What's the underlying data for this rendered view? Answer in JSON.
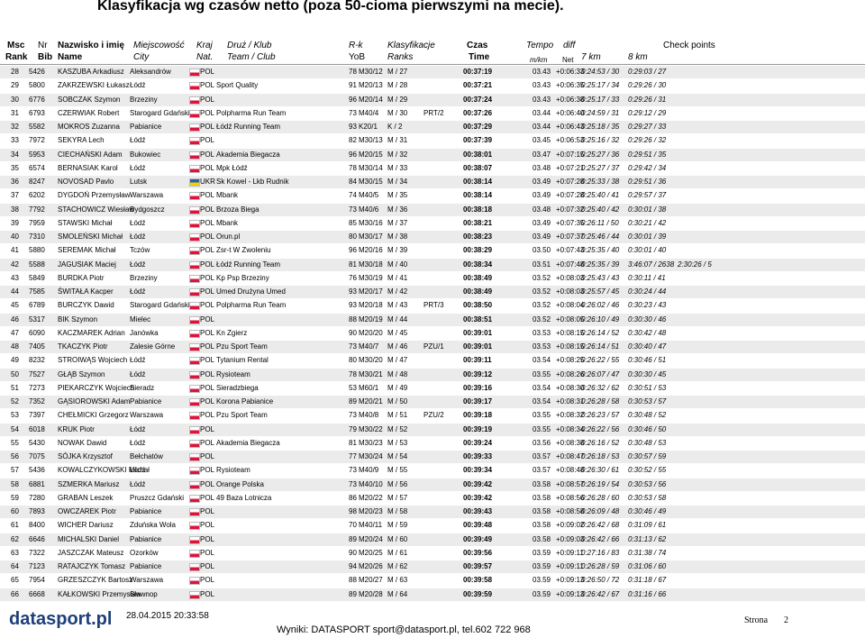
{
  "title": "Klasyfikacja wg czasów netto (poza 50-cioma pierwszymi na mecie).",
  "header": {
    "top": {
      "rank": "Msc",
      "bib": "Nr",
      "name": "Nazwisko i imię",
      "city": "Miejscowość",
      "nat": "Kraj",
      "club": "Druż / Klub",
      "cat": "R-k",
      "cls": "Klasyfikacje",
      "time": "Czas",
      "tempo": "Tempo",
      "diff": "diff",
      "check": "Check points"
    },
    "bottom": {
      "rank": "Rank",
      "bib": "Bib",
      "name": "Name",
      "city": "City",
      "nat": "Nat.",
      "club": "Team / Club",
      "yob": "YoB",
      "cls": "Ranks",
      "time": "Time",
      "tempo": "m/km",
      "net": "Net",
      "k7": "7 km",
      "k8": "8 km"
    }
  },
  "table": {
    "rows": [
      {
        "rank": "28",
        "bib": "5426",
        "name": "KASZUBA Arkadiusz",
        "city": "Aleksandrów",
        "nat": "POL",
        "yob": "78",
        "cat": "M30/12",
        "cls": "M / 27",
        "time": "00:37:19",
        "tempo": "03.43",
        "diff": "+0:06:33",
        "k7": "0:24:53 / 30",
        "k8": "0:29:03 / 27"
      },
      {
        "rank": "29",
        "bib": "5800",
        "name": "ZAKRZEWSKI Łukasz",
        "city": "Łódź",
        "nat": "POL",
        "club": "Sport Quality",
        "yob": "91",
        "cat": "M20/13",
        "cls": "M / 28",
        "time": "00:37:21",
        "tempo": "03.43",
        "diff": "+0:06:35",
        "k7": "0:25:17 / 34",
        "k8": "0:29:26 / 30"
      },
      {
        "rank": "30",
        "bib": "6776",
        "name": "SOBCZAK Szymon",
        "city": "Brzeziny",
        "nat": "POL",
        "yob": "96",
        "cat": "M20/14",
        "cls": "M / 29",
        "time": "00:37:24",
        "tempo": "03.43",
        "diff": "+0:06:38",
        "k7": "0:25:17 / 33",
        "k8": "0:29:26 / 31"
      },
      {
        "rank": "31",
        "bib": "6793",
        "name": "CZERWIAK Robert",
        "city": "Starogard Gdański",
        "nat": "POL",
        "club": "Polpharma Run Team",
        "yob": "73",
        "cat": "M40/4",
        "cls": "M / 30",
        "team": "PRT/2",
        "time": "00:37:26",
        "tempo": "03.44",
        "diff": "+0:06:40",
        "k7": "0:24:59 / 31",
        "k8": "0:29:12 / 29"
      },
      {
        "rank": "32",
        "bib": "5582",
        "name": "MOKROS Zuzanna",
        "city": "Pabianice",
        "nat": "POL",
        "club": "Łódź Running Team",
        "yob": "93",
        "cat": "K20/1",
        "cls": "K / 2",
        "time": "00:37:29",
        "tempo": "03.44",
        "diff": "+0:06:43",
        "k7": "0:25:18 / 35",
        "k8": "0:29:27 / 33"
      },
      {
        "rank": "33",
        "bib": "7972",
        "name": "SEKYRA Lech",
        "city": "Łódź",
        "nat": "POL",
        "yob": "82",
        "cat": "M30/13",
        "cls": "M / 31",
        "time": "00:37:39",
        "tempo": "03.45",
        "diff": "+0:06:53",
        "k7": "0:25:16 / 32",
        "k8": "0:29:26 / 32"
      },
      {
        "rank": "34",
        "bib": "5953",
        "name": "CIECHAŃSKI Adam",
        "city": "Bukowiec",
        "nat": "POL",
        "club": "Akademia Biegacza",
        "yob": "96",
        "cat": "M20/15",
        "cls": "M / 32",
        "time": "00:38:01",
        "tempo": "03.47",
        "diff": "+0:07:15",
        "k7": "0:25:27 / 36",
        "k8": "0:29:51 / 35"
      },
      {
        "rank": "35",
        "bib": "6574",
        "name": "BERNASIAK Karol",
        "city": "Łódź",
        "nat": "POL",
        "club": "Mpk Łódź",
        "yob": "78",
        "cat": "M30/14",
        "cls": "M / 33",
        "time": "00:38:07",
        "tempo": "03.48",
        "diff": "+0:07:21",
        "k7": "0:25:27 / 37",
        "k8": "0:29:42 / 34"
      },
      {
        "rank": "36",
        "bib": "8247",
        "name": "NOVOSAD Pavlo",
        "city": "Lutsk",
        "nat": "UKR",
        "club": "Sk Kowel - Lkb Rudnik",
        "yob": "84",
        "cat": "M30/15",
        "cls": "M / 34",
        "time": "00:38:14",
        "tempo": "03.49",
        "diff": "+0:07:28",
        "k7": "0:25:33 / 38",
        "k8": "0:29:51 / 36"
      },
      {
        "rank": "37",
        "bib": "6202",
        "name": "DYGDOŃ Przemysław",
        "city": "Warszawa",
        "nat": "POL",
        "club": "Mbank",
        "yob": "74",
        "cat": "M40/5",
        "cls": "M / 35",
        "time": "00:38:14",
        "tempo": "03.49",
        "diff": "+0:07:28",
        "k7": "0:25:40 / 41",
        "k8": "0:29:57 / 37"
      },
      {
        "rank": "38",
        "bib": "7792",
        "name": "STACHOWICZ Wiesław",
        "city": "Bydgoszcz",
        "nat": "POL",
        "club": "Brzoza Biega",
        "yob": "73",
        "cat": "M40/6",
        "cls": "M / 36",
        "time": "00:38:18",
        "tempo": "03.48",
        "diff": "+0:07:32",
        "k7": "0:25:40 / 42",
        "k8": "0:30:01 / 38"
      },
      {
        "rank": "39",
        "bib": "7959",
        "name": "STAWSKI Michał",
        "city": "Łódź",
        "nat": "POL",
        "club": "Mbank",
        "yob": "85",
        "cat": "M30/16",
        "cls": "M / 37",
        "time": "00:38:21",
        "tempo": "03.49",
        "diff": "+0:07:35",
        "k7": "0:26:11 / 50",
        "k8": "0:30:21 / 42"
      },
      {
        "rank": "40",
        "bib": "7310",
        "name": "SMOLEŃSKI Michał",
        "city": "Łódź",
        "nat": "POL",
        "club": "Orun.pl",
        "yob": "80",
        "cat": "M30/17",
        "cls": "M / 38",
        "time": "00:38:23",
        "tempo": "03.49",
        "diff": "+0:07:37",
        "k7": "0:25:46 / 44",
        "k8": "0:30:01 / 39"
      },
      {
        "rank": "41",
        "bib": "5880",
        "name": "SEREMAK Michał",
        "city": "Tczów",
        "nat": "POL",
        "club": "Zsr-t W Zwoleniu",
        "yob": "96",
        "cat": "M20/16",
        "cls": "M / 39",
        "time": "00:38:29",
        "tempo": "03.50",
        "diff": "+0:07:43",
        "k7": "0:25:35 / 40",
        "k8": "0:30:01 / 40"
      },
      {
        "rank": "42",
        "bib": "5588",
        "name": "JAGUSIAK Maciej",
        "city": "Łódź",
        "nat": "POL",
        "club": "Łódź Running Team",
        "yob": "81",
        "cat": "M30/18",
        "cls": "M / 40",
        "time": "00:38:34",
        "tempo": "03.51",
        "diff": "+0:07:48",
        "k7": "0:25:35 / 39",
        "k8": "3:46:07 / 2638",
        "extra": "2:30:26 / 5"
      },
      {
        "rank": "43",
        "bib": "5849",
        "name": "BURDKA Piotr",
        "city": "Brzeziny",
        "nat": "POL",
        "club": "Kp Psp Brzeziny",
        "yob": "76",
        "cat": "M30/19",
        "cls": "M / 41",
        "time": "00:38:49",
        "tempo": "03.52",
        "diff": "+0:08:03",
        "k7": "0:25:43 / 43",
        "k8": "0:30:11 / 41"
      },
      {
        "rank": "44",
        "bib": "7585",
        "name": "ŚWITAŁA Kacper",
        "city": "Łódź",
        "nat": "POL",
        "club": "Umed Drużyna Umed",
        "yob": "93",
        "cat": "M20/17",
        "cls": "M / 42",
        "time": "00:38:49",
        "tempo": "03.52",
        "diff": "+0:08:03",
        "k7": "0:25:57 / 45",
        "k8": "0:30:24 / 44"
      },
      {
        "rank": "45",
        "bib": "6789",
        "name": "BURCZYK Dawid",
        "city": "Starogard Gdański",
        "nat": "POL",
        "club": "Polpharma Run Team",
        "yob": "93",
        "cat": "M20/18",
        "cls": "M / 43",
        "team": "PRT/3",
        "time": "00:38:50",
        "tempo": "03.52",
        "diff": "+0:08:04",
        "k7": "0:26:02 / 46",
        "k8": "0:30:23 / 43"
      },
      {
        "rank": "46",
        "bib": "5317",
        "name": "BIK Szymon",
        "city": "Mielec",
        "nat": "POL",
        "yob": "88",
        "cat": "M20/19",
        "cls": "M / 44",
        "time": "00:38:51",
        "tempo": "03.52",
        "diff": "+0:08:05",
        "k7": "0:26:10 / 49",
        "k8": "0:30:30 / 46"
      },
      {
        "rank": "47",
        "bib": "6090",
        "name": "KACZMAREK Adrian",
        "city": "Janówka",
        "nat": "POL",
        "club": "Kn Zgierz",
        "yob": "90",
        "cat": "M20/20",
        "cls": "M / 45",
        "time": "00:39:01",
        "tempo": "03.53",
        "diff": "+0:08:15",
        "k7": "0:26:14 / 52",
        "k8": "0:30:42 / 48"
      },
      {
        "rank": "48",
        "bib": "7405",
        "name": "TKACZYK Piotr",
        "city": "Zalesie Górne",
        "nat": "POL",
        "club": "Pzu Sport Team",
        "yob": "73",
        "cat": "M40/7",
        "cls": "M / 46",
        "team": "PZU/1",
        "time": "00:39:01",
        "tempo": "03.53",
        "diff": "+0:08:15",
        "k7": "0:26:14 / 51",
        "k8": "0:30:40 / 47"
      },
      {
        "rank": "49",
        "bib": "8232",
        "name": "STROIWĄS Wojciech",
        "city": "Łódź",
        "nat": "POL",
        "club": "Tytanium Rental",
        "yob": "80",
        "cat": "M30/20",
        "cls": "M / 47",
        "time": "00:39:11",
        "tempo": "03.54",
        "diff": "+0:08:25",
        "k7": "0:26:22 / 55",
        "k8": "0:30:46 / 51"
      },
      {
        "rank": "50",
        "bib": "7527",
        "name": "GŁĄB Szymon",
        "city": "Łódź",
        "nat": "POL",
        "club": "Rysioteam",
        "yob": "78",
        "cat": "M30/21",
        "cls": "M / 48",
        "time": "00:39:12",
        "tempo": "03.55",
        "diff": "+0:08:26",
        "k7": "0:26:07 / 47",
        "k8": "0:30:30 / 45"
      },
      {
        "rank": "51",
        "bib": "7273",
        "name": "PIEKARCZYK Wojciech",
        "city": "Sieradz",
        "nat": "POL",
        "club": "Sieradzbiega",
        "yob": "53",
        "cat": "M60/1",
        "cls": "M / 49",
        "time": "00:39:16",
        "tempo": "03.54",
        "diff": "+0:08:30",
        "k7": "0:26:32 / 62",
        "k8": "0:30:51 / 53"
      },
      {
        "rank": "52",
        "bib": "7352",
        "name": "GĄSIOROWSKI Adam",
        "city": "Pabianice",
        "nat": "POL",
        "club": "Korona Pabianice",
        "yob": "89",
        "cat": "M20/21",
        "cls": "M / 50",
        "time": "00:39:17",
        "tempo": "03.54",
        "diff": "+0:08:31",
        "k7": "0:26:28 / 58",
        "k8": "0:30:53 / 57"
      },
      {
        "rank": "53",
        "bib": "7397",
        "name": "CHEŁMICKI Grzegorz",
        "city": "Warszawa",
        "nat": "POL",
        "club": "Pzu Sport Team",
        "yob": "73",
        "cat": "M40/8",
        "cls": "M / 51",
        "team": "PZU/2",
        "time": "00:39:18",
        "tempo": "03.55",
        "diff": "+0:08:32",
        "k7": "0:26:23 / 57",
        "k8": "0:30:48 / 52"
      },
      {
        "rank": "54",
        "bib": "6018",
        "name": "KRUK Piotr",
        "city": "Łódź",
        "nat": "POL",
        "yob": "79",
        "cat": "M30/22",
        "cls": "M / 52",
        "time": "00:39:19",
        "tempo": "03.55",
        "diff": "+0:08:34",
        "k7": "0:26:22 / 56",
        "k8": "0:30:46 / 50"
      },
      {
        "rank": "55",
        "bib": "5430",
        "name": "NOWAK Dawid",
        "city": "Łódź",
        "nat": "POL",
        "club": "Akademia Biegacza",
        "yob": "81",
        "cat": "M30/23",
        "cls": "M / 53",
        "time": "00:39:24",
        "tempo": "03.56",
        "diff": "+0:08:38",
        "k7": "0:26:16 / 52",
        "k8": "0:30:48 / 53"
      },
      {
        "rank": "56",
        "bib": "7075",
        "name": "SÓJKA Krzysztof",
        "city": "Bełchatów",
        "nat": "POL",
        "yob": "77",
        "cat": "M30/24",
        "cls": "M / 54",
        "time": "00:39:33",
        "tempo": "03.57",
        "diff": "+0:08:47",
        "k7": "0:26:18 / 53",
        "k8": "0:30:57 / 59"
      },
      {
        "rank": "57",
        "bib": "5436",
        "name": "KOWALCZYKOWSKI Michał",
        "city": "Łódź",
        "nat": "POL",
        "club": "Rysioteam",
        "yob": "73",
        "cat": "M40/9",
        "cls": "M / 55",
        "time": "00:39:34",
        "tempo": "03.57",
        "diff": "+0:08:48",
        "k7": "0:26:30 / 61",
        "k8": "0:30:52 / 55"
      },
      {
        "rank": "58",
        "bib": "6881",
        "name": "SZMERKA Mariusz",
        "city": "Łódź",
        "nat": "POL",
        "club": "Orange Polska",
        "yob": "73",
        "cat": "M40/10",
        "cls": "M / 56",
        "time": "00:39:42",
        "tempo": "03.58",
        "diff": "+0:08:57",
        "k7": "0:26:19 / 54",
        "k8": "0:30:53 / 56"
      },
      {
        "rank": "59",
        "bib": "7280",
        "name": "GRABAN Leszek",
        "city": "Pruszcz Gdański",
        "nat": "POL",
        "club": "49 Baza Lotnicza",
        "yob": "86",
        "cat": "M20/22",
        "cls": "M / 57",
        "time": "00:39:42",
        "tempo": "03.58",
        "diff": "+0:08:56",
        "k7": "0:26:28 / 60",
        "k8": "0:30:53 / 58"
      },
      {
        "rank": "60",
        "bib": "7893",
        "name": "OWCZAREK Piotr",
        "city": "Pabianice",
        "nat": "POL",
        "yob": "98",
        "cat": "M20/23",
        "cls": "M / 58",
        "time": "00:39:43",
        "tempo": "03.58",
        "diff": "+0:08:58",
        "k7": "0:26:09 / 48",
        "k8": "0:30:46 / 49"
      },
      {
        "rank": "61",
        "bib": "8400",
        "name": "WICHER Dariusz",
        "city": "Zduńska Wola",
        "nat": "POL",
        "yob": "70",
        "cat": "M40/11",
        "cls": "M / 59",
        "time": "00:39:48",
        "tempo": "03.58",
        "diff": "+0:09:02",
        "k7": "0:26:42 / 68",
        "k8": "0:31:09 / 61"
      },
      {
        "rank": "62",
        "bib": "6646",
        "name": "MICHALSKI Daniel",
        "city": "Pabianice",
        "nat": "POL",
        "yob": "89",
        "cat": "M20/24",
        "cls": "M / 60",
        "time": "00:39:49",
        "tempo": "03.58",
        "diff": "+0:09:03",
        "k7": "0:26:42 / 66",
        "k8": "0:31:13 / 62"
      },
      {
        "rank": "63",
        "bib": "7322",
        "name": "JASZCZAK Mateusz",
        "city": "Ozorków",
        "nat": "POL",
        "yob": "90",
        "cat": "M20/25",
        "cls": "M / 61",
        "time": "00:39:56",
        "tempo": "03.59",
        "diff": "+0:09:11",
        "k7": "0:27:16 / 83",
        "k8": "0:31:38 / 74"
      },
      {
        "rank": "64",
        "bib": "7123",
        "name": "RATAJCZYK Tomasz",
        "city": "Pabianice",
        "nat": "POL",
        "yob": "94",
        "cat": "M20/26",
        "cls": "M / 62",
        "time": "00:39:57",
        "tempo": "03.59",
        "diff": "+0:09:11",
        "k7": "0:26:28 / 59",
        "k8": "0:31:06 / 60"
      },
      {
        "rank": "65",
        "bib": "7954",
        "name": "GRZESZCZYK Bartosz",
        "city": "Warszawa",
        "nat": "POL",
        "yob": "88",
        "cat": "M20/27",
        "cls": "M / 63",
        "time": "00:39:58",
        "tempo": "03.59",
        "diff": "+0:09:13",
        "k7": "0:26:50 / 72",
        "k8": "0:31:18 / 67"
      },
      {
        "rank": "66",
        "bib": "6668",
        "name": "KAŁKOWSKI Przemysław",
        "city": "Sławnop",
        "nat": "POL",
        "yob": "89",
        "cat": "M20/28",
        "cls": "M / 64",
        "time": "00:39:59",
        "tempo": "03.59",
        "diff": "+0:09:13",
        "k7": "0:26:42 / 67",
        "k8": "0:31:16 / 66"
      }
    ]
  },
  "footer": {
    "logo": "datasport.pl",
    "date": "28.04.2015 20:33:58",
    "contact": "Wyniki: DATASPORT sport@datasport.pl, tel.602 722 968",
    "page_label": "Strona",
    "page": "2"
  }
}
